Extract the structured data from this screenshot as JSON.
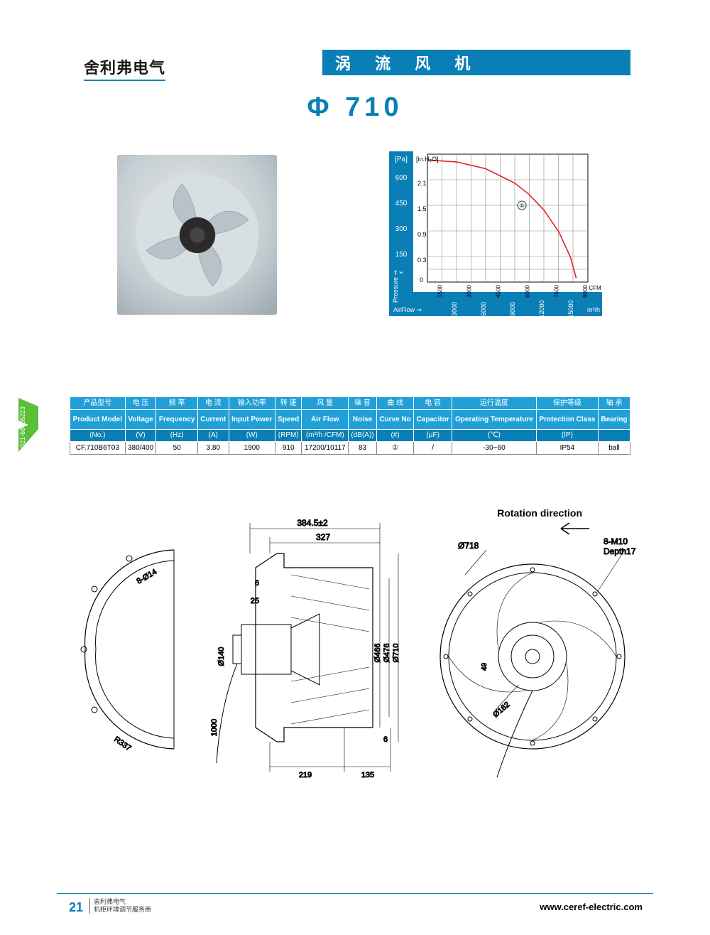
{
  "header": {
    "brand": "舍利弗电气",
    "title": "涡 流 风 机"
  },
  "model": "Φ 710",
  "side_tab": "021-68405223",
  "chart": {
    "y_axis_left": {
      "label_top": "[Pa]",
      "ticks": [
        "600",
        "450",
        "300",
        "150"
      ],
      "axis_label": "Pressure ➞",
      "zero": "0"
    },
    "y_axis_right": {
      "label_top": "[in.H₂O]",
      "ticks": [
        "2.1",
        "1.5",
        "0.9",
        "0.3"
      ]
    },
    "x_axis_top": {
      "ticks": [
        "1500",
        "3000",
        "4500",
        "6000",
        "7500",
        "9000"
      ],
      "unit": "CFM"
    },
    "x_axis_bottom": {
      "label": "AirFlow ➞",
      "ticks": [
        "3000",
        "6000",
        "9000",
        "12000",
        "15000"
      ],
      "unit": "m³/h"
    },
    "curve_marker": "①",
    "curve": {
      "color": "#e02020",
      "points": [
        [
          0,
          630
        ],
        [
          3000,
          620
        ],
        [
          6000,
          585
        ],
        [
          9000,
          510
        ],
        [
          10500,
          450
        ],
        [
          12000,
          370
        ],
        [
          13500,
          260
        ],
        [
          14700,
          130
        ],
        [
          15300,
          20
        ]
      ]
    },
    "plot": {
      "x_max": 16500,
      "y_max": 660,
      "grid_color": "#8aa",
      "bg": "#ffffff",
      "band_bg": "#0a7fb5"
    }
  },
  "table": {
    "columns_cn": [
      "产品型号",
      "电 压",
      "频 率",
      "电 流",
      "输入功率",
      "转 速",
      "风 量",
      "噪 音",
      "曲 线",
      "电 容",
      "运行温度",
      "保护等级",
      "轴 承"
    ],
    "columns_en": [
      "Product Model",
      "Voltage",
      "Frequency",
      "Current",
      "Input Power",
      "Speed",
      "Air Flow",
      "Noise",
      "Curve No",
      "Capacitor",
      "Operating Temperature",
      "Protection Class",
      "Bearing"
    ],
    "units": [
      "(No.)",
      "(V)",
      "(Hz)",
      "(A)",
      "(W)",
      "(RPM)",
      "(m³/h /CFM)",
      "(dB(A))",
      "(#)",
      "(µF)",
      "(℃)",
      "(IP)",
      ""
    ],
    "row": [
      "CF.710B6T03",
      "380/400",
      "50",
      "3.80",
      "1900",
      "910",
      "17200/10117",
      "83",
      "①",
      "/",
      "-30~60",
      "IP54",
      "ball"
    ]
  },
  "drawings": {
    "rotation_label": "Rotation direction",
    "dims": {
      "top_outer": "384.5±2",
      "top_inner": "327",
      "left_6": "6",
      "left_25": "25",
      "d140": "Ø140",
      "len1000": "1000",
      "r337": "R337",
      "holes_left": "8-Ø14",
      "d466": "Ø466",
      "d476": "Ø476",
      "d710": "Ø710",
      "bottom_219": "219",
      "bottom_135": "135",
      "bottom_6": "6",
      "d718": "Ø718",
      "holes_right": "8-M10",
      "depth": "Depth17",
      "v49": "49",
      "d162": "Ø162"
    }
  },
  "footer": {
    "page": "21",
    "brand_line1": "舍利弗电气",
    "brand_line2": "机柜环境调节服务商",
    "url": "www.ceref-electric.com"
  }
}
